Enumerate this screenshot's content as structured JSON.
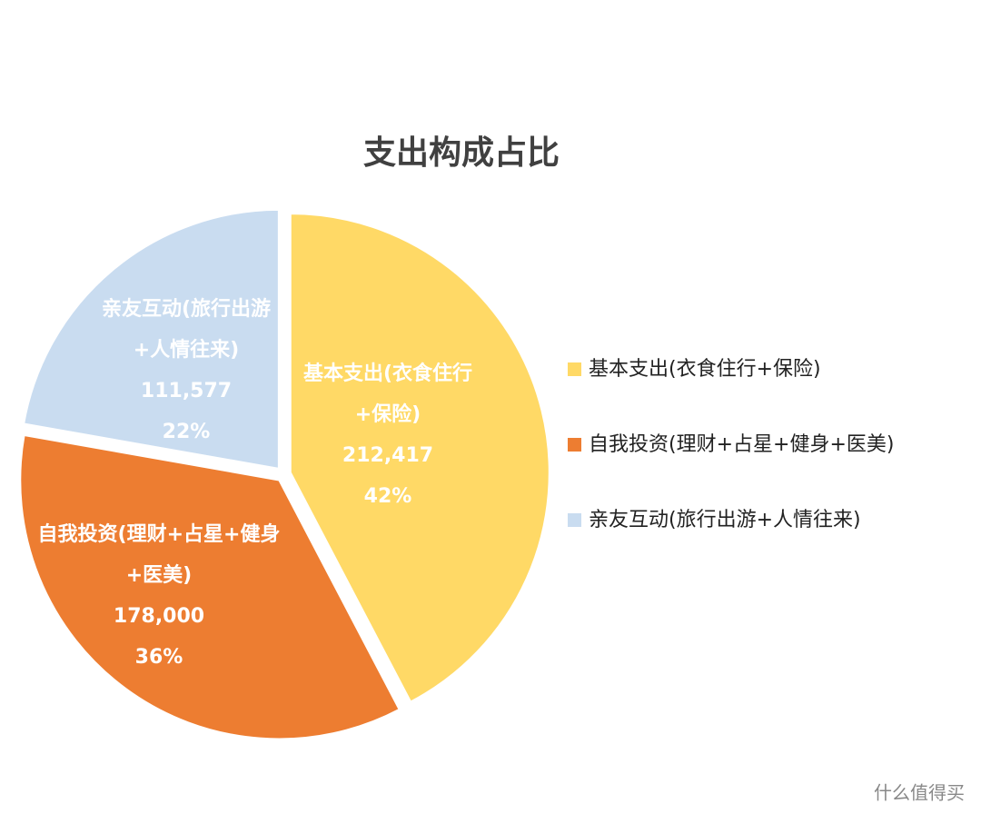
{
  "chart_data": {
    "type": "pie",
    "title": "支出构成占比",
    "categories": [
      "基本支出(衣食住行+保险)",
      "自我投资(理财+占星+健身+医美)",
      "亲友互动(旅行出游+人情往来)"
    ],
    "values": [
      212417,
      178000,
      111577
    ],
    "value_labels": [
      "212,417",
      "178,000",
      "111,577"
    ],
    "percent_labels": [
      "42%",
      "36%",
      "22%"
    ],
    "colors": [
      "#FFD966",
      "#ED7D31",
      "#C9DCF0"
    ],
    "legend": "right"
  },
  "watermark": "什么值得买"
}
